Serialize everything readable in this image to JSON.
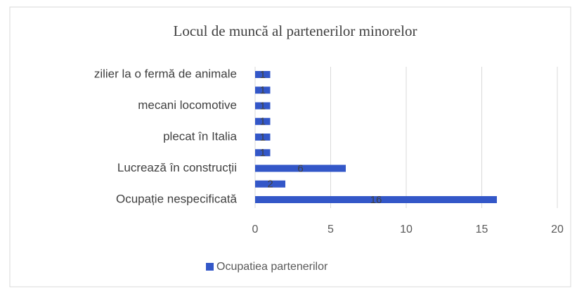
{
  "chart_data": {
    "type": "barh",
    "title": "Locul de muncă al partenerilor minorelor",
    "categories": [
      "Ocupație nespecificată",
      null,
      "Lucrează în construcții",
      null,
      "plecat în Italia",
      null,
      "mecani locomotive",
      null,
      "zilier la o fermă de animale"
    ],
    "series": [
      {
        "name": "Ocupatiea partenerilor",
        "color": "#3357c8",
        "values": [
          16,
          2,
          6,
          1,
          1,
          1,
          1,
          1,
          1
        ]
      }
    ],
    "xlim": [
      0,
      20
    ],
    "xticks": [
      0,
      5,
      10,
      15,
      20
    ],
    "grid": true,
    "legend": "bottom"
  }
}
